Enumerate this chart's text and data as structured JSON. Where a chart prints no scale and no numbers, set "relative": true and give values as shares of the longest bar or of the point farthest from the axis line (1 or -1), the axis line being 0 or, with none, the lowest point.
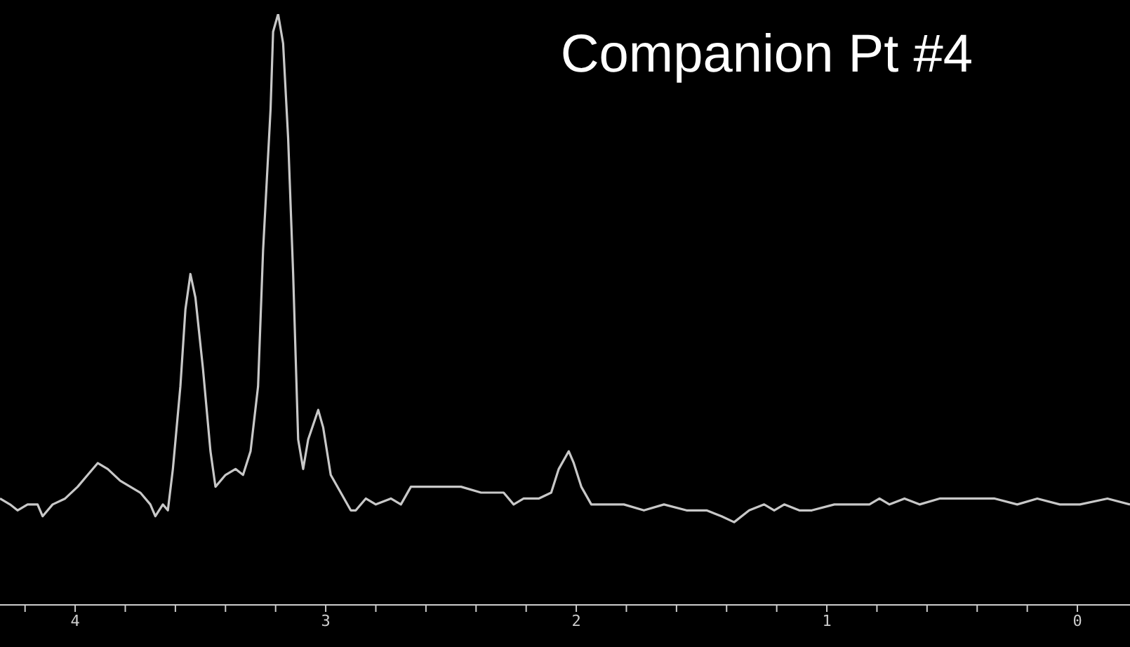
{
  "chart_data": {
    "type": "line",
    "title": "Companion Pt #4",
    "relative": true,
    "xlim": [
      4.3,
      -0.21
    ],
    "xticks": [
      {
        "value": 4.2,
        "label": null
      },
      4,
      {
        "value": 3.8,
        "label": null
      },
      {
        "value": 3.6,
        "label": null
      },
      {
        "value": 3.4,
        "label": null
      },
      {
        "value": 3.2,
        "label": null
      },
      3,
      {
        "value": 2.8,
        "label": null
      },
      {
        "value": 2.6,
        "label": null
      },
      {
        "value": 2.4,
        "label": null
      },
      {
        "value": 2.2,
        "label": null
      },
      2,
      {
        "value": 1.8,
        "label": null
      },
      {
        "value": 1.6,
        "label": null
      },
      {
        "value": 1.4,
        "label": null
      },
      {
        "value": 1.2,
        "label": null
      },
      1,
      {
        "value": 0.8,
        "label": null
      },
      {
        "value": 0.6,
        "label": null
      },
      {
        "value": 0.4,
        "label": null
      },
      {
        "value": 0.2,
        "label": null
      },
      0
    ],
    "tick_labels": "x",
    "grid": false,
    "legend": false,
    "marker": "none",
    "line_style": "solid",
    "series": [
      {
        "color": "#c8c8c8",
        "x": [
          4.3,
          4.26,
          4.23,
          4.19,
          4.15,
          4.13,
          4.09,
          4.04,
          3.99,
          3.95,
          3.91,
          3.87,
          3.82,
          3.78,
          3.74,
          3.7,
          3.68,
          3.65,
          3.63,
          3.61,
          3.58,
          3.56,
          3.54,
          3.52,
          3.49,
          3.46,
          3.44,
          3.4,
          3.36,
          3.33,
          3.3,
          3.27,
          3.25,
          3.22,
          3.21,
          3.19,
          3.17,
          3.15,
          3.13,
          3.11,
          3.09,
          3.07,
          3.03,
          3.01,
          2.98,
          2.94,
          2.9,
          2.88,
          2.84,
          2.8,
          2.74,
          2.7,
          2.66,
          2.57,
          2.46,
          2.38,
          2.29,
          2.25,
          2.21,
          2.15,
          2.1,
          2.07,
          2.03,
          2.01,
          1.98,
          1.94,
          1.89,
          1.81,
          1.73,
          1.65,
          1.56,
          1.48,
          1.42,
          1.37,
          1.31,
          1.25,
          1.21,
          1.17,
          1.11,
          1.06,
          0.97,
          0.89,
          0.83,
          0.79,
          0.75,
          0.69,
          0.63,
          0.55,
          0.44,
          0.33,
          0.24,
          0.16,
          0.07,
          -0.01,
          -0.12,
          -0.21
        ],
        "values": [
          0.18,
          0.17,
          0.16,
          0.17,
          0.17,
          0.15,
          0.17,
          0.18,
          0.2,
          0.22,
          0.24,
          0.23,
          0.21,
          0.2,
          0.19,
          0.17,
          0.15,
          0.17,
          0.16,
          0.23,
          0.37,
          0.5,
          0.56,
          0.52,
          0.4,
          0.26,
          0.2,
          0.22,
          0.23,
          0.22,
          0.26,
          0.37,
          0.6,
          0.84,
          0.97,
          1,
          0.95,
          0.79,
          0.56,
          0.28,
          0.23,
          0.28,
          0.33,
          0.3,
          0.22,
          0.19,
          0.16,
          0.16,
          0.18,
          0.17,
          0.18,
          0.17,
          0.2,
          0.2,
          0.2,
          0.19,
          0.19,
          0.17,
          0.18,
          0.18,
          0.19,
          0.23,
          0.26,
          0.24,
          0.2,
          0.17,
          0.17,
          0.17,
          0.16,
          0.17,
          0.16,
          0.16,
          0.15,
          0.14,
          0.16,
          0.17,
          0.16,
          0.17,
          0.16,
          0.16,
          0.17,
          0.17,
          0.17,
          0.18,
          0.17,
          0.18,
          0.17,
          0.18,
          0.18,
          0.18,
          0.17,
          0.18,
          0.17,
          0.17,
          0.18,
          0.17
        ]
      }
    ]
  }
}
